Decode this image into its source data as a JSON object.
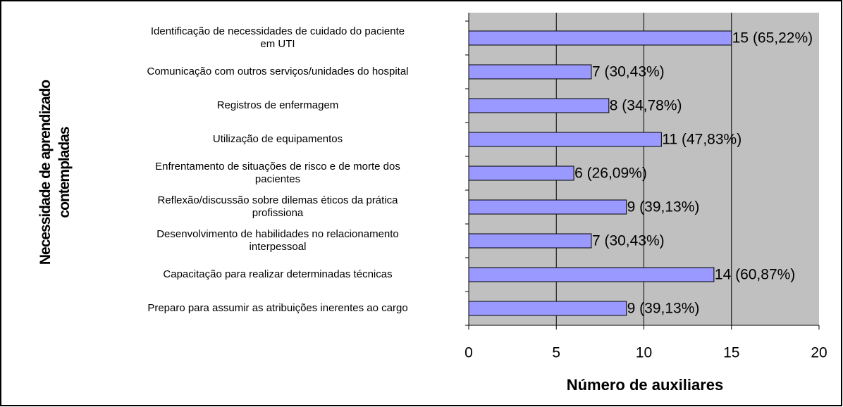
{
  "chart_data": {
    "type": "bar",
    "orientation": "horizontal",
    "categories": [
      "Identificação de necessidades de cuidado do paciente\nem UTI",
      "Comunicação com outros serviços/unidades do hospital",
      "Registros de enfermagem",
      "Utilização de equipamentos",
      "Enfrentamento de situações de risco e de morte dos\npacientes",
      "Reflexão/discussão sobre dilemas éticos da prática\nprofissiona",
      "Desenvolvimento de habilidades no relacionamento\ninterpessoal",
      "Capacitação para realizar determinadas técnicas",
      "Preparo para assumir as atribuições inerentes ao cargo"
    ],
    "values": [
      15,
      7,
      8,
      11,
      6,
      9,
      7,
      14,
      9
    ],
    "value_labels": [
      "15 (65,22%)",
      "7 (30,43%)",
      "8 (34,78%)",
      "11 (47,83%)",
      "6 (26,09%)",
      "9 (39,13%)",
      "7 (30,43%)",
      "14 (60,87%)",
      "9 (39,13%)"
    ],
    "color": "#9999ff",
    "xlabel": "Número de auxiliares",
    "ylabel": "Necessidade de aprendizado\ncontempladas",
    "xlim": [
      0,
      20
    ],
    "xticks": [
      0,
      5,
      10,
      15,
      20
    ],
    "grid": true
  }
}
